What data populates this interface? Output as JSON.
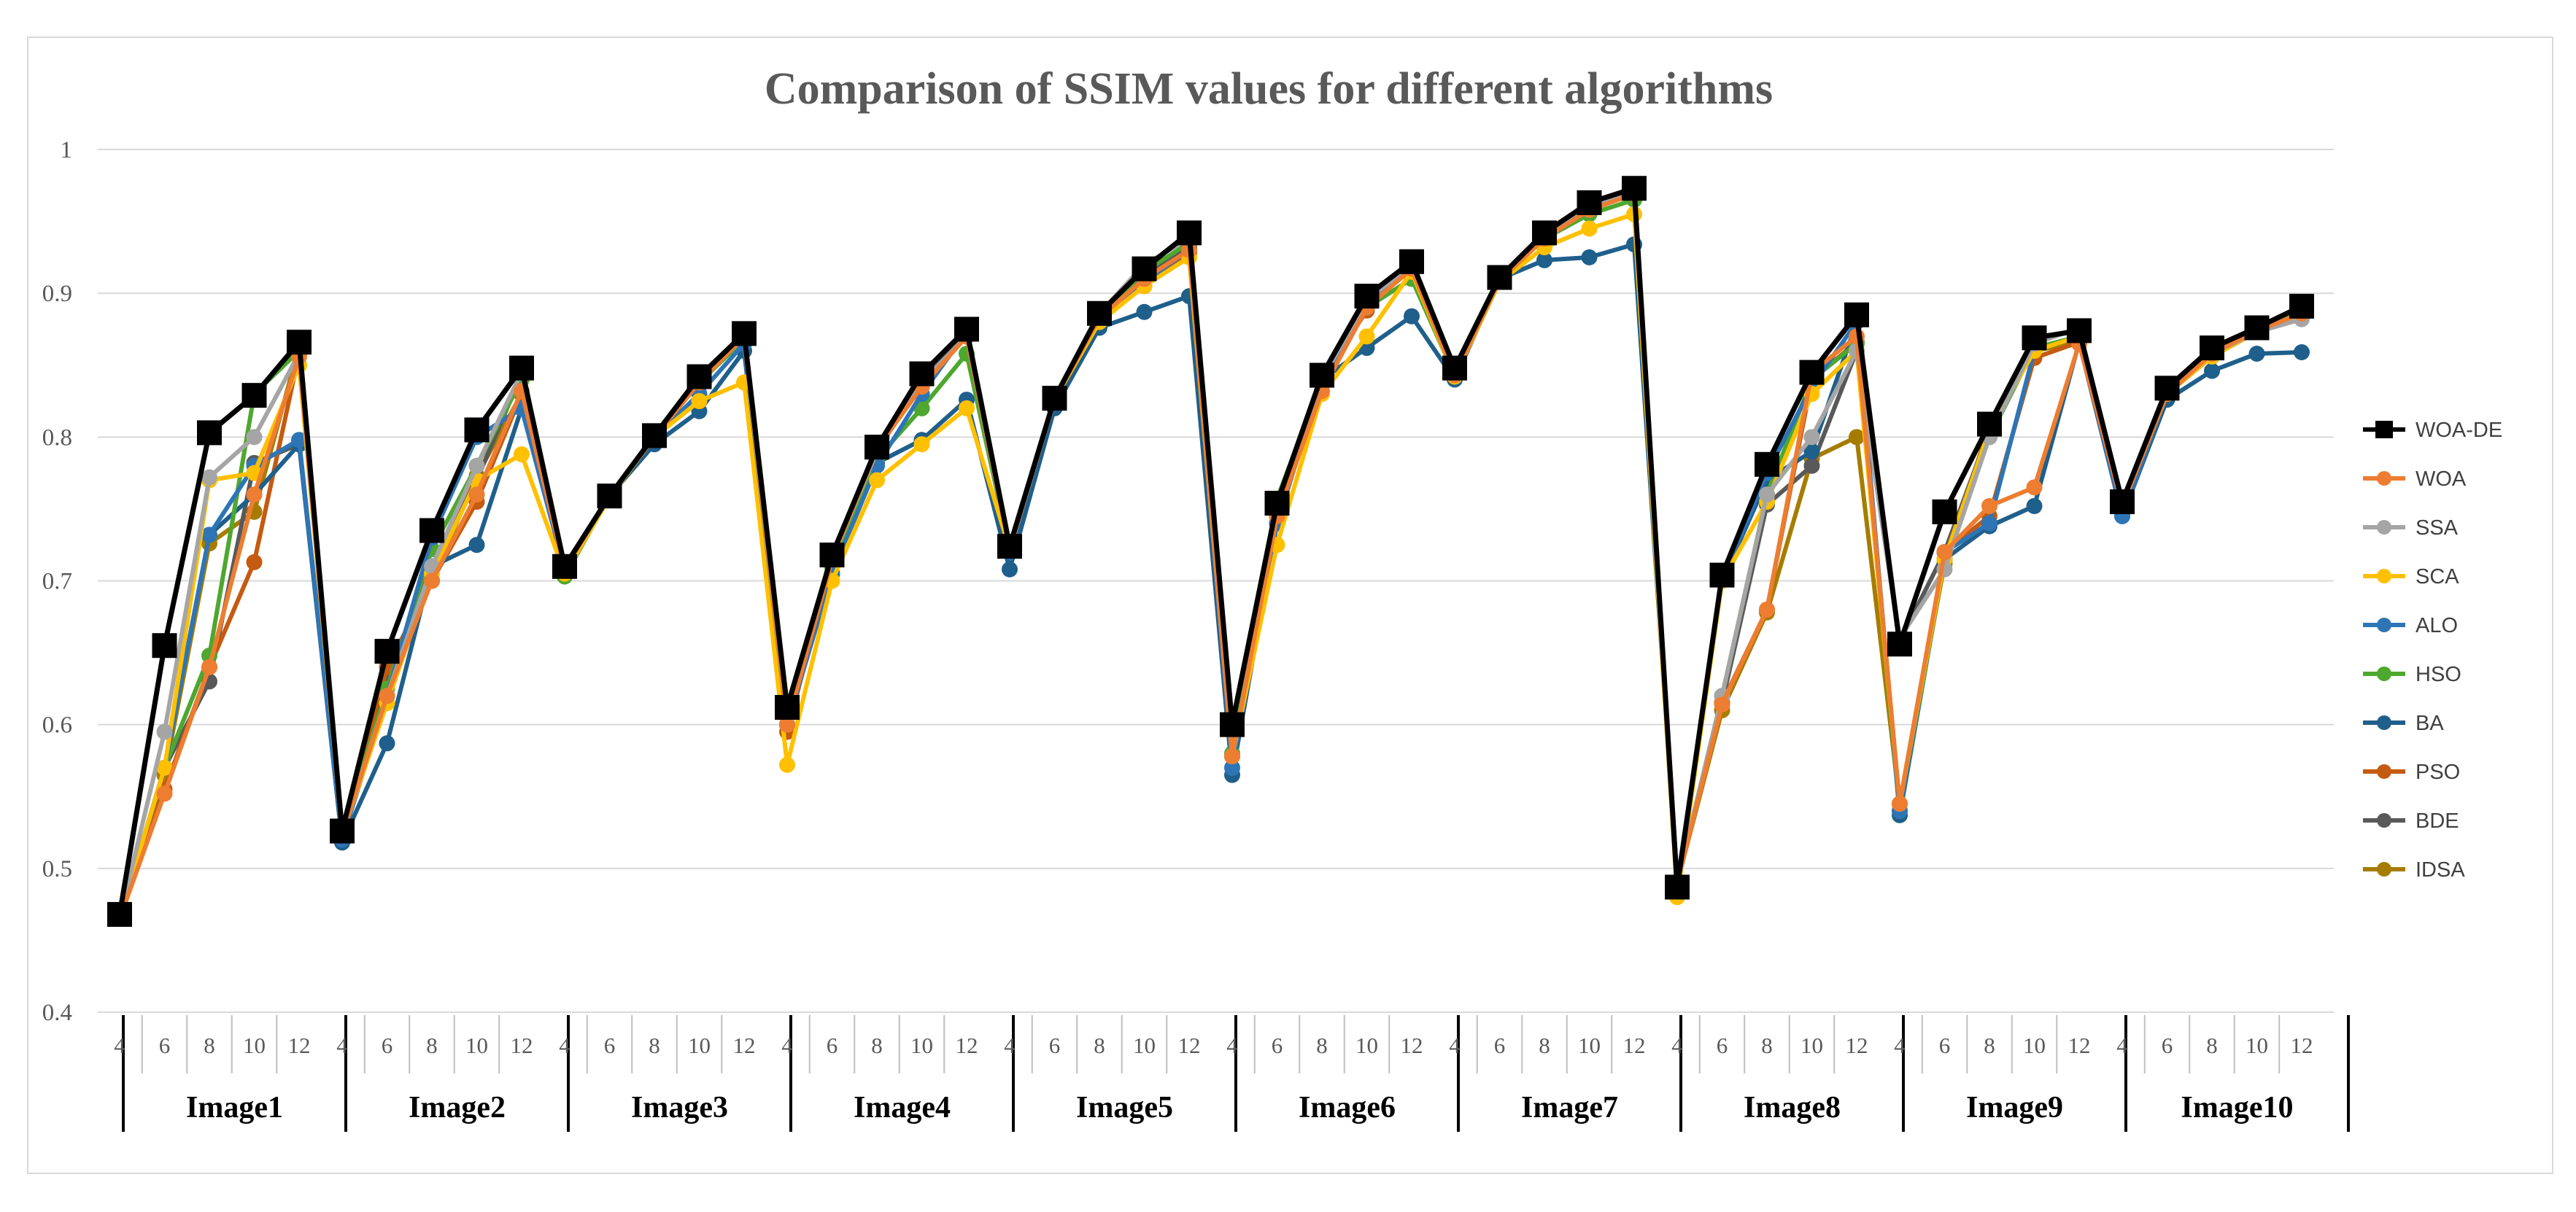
{
  "chart_data": {
    "type": "line",
    "title": "Comparison of SSIM values for different algorithms",
    "xlabel": "",
    "ylabel": "",
    "ylim": [
      0.4,
      1
    ],
    "yticks": [
      "0.4",
      "0.5",
      "0.6",
      "0.7",
      "0.8",
      "0.9",
      "1"
    ],
    "groups": [
      "Image1",
      "Image2",
      "Image3",
      "Image4",
      "Image5",
      "Image6",
      "Image7",
      "Image8",
      "Image9",
      "Image10"
    ],
    "sub_categories": [
      "4",
      "6",
      "8",
      "10",
      "12"
    ],
    "legend_position": "right",
    "grid": "horizontal",
    "series": [
      {
        "name": "WOA-DE",
        "color": "#000000",
        "marker": "square",
        "values": [
          0.468,
          0.655,
          0.803,
          0.829,
          0.866,
          0.526,
          0.651,
          0.735,
          0.805,
          0.848,
          0.71,
          0.759,
          0.801,
          0.842,
          0.872,
          0.612,
          0.718,
          0.793,
          0.844,
          0.875,
          0.724,
          0.827,
          0.886,
          0.917,
          0.942,
          0.6,
          0.754,
          0.843,
          0.898,
          0.922,
          0.848,
          0.911,
          0.942,
          0.963,
          0.973,
          0.487,
          0.704,
          0.781,
          0.845,
          0.885,
          0.656,
          0.748,
          0.809,
          0.869,
          0.874,
          0.755,
          0.834,
          0.862,
          0.876,
          0.891
        ]
      },
      {
        "name": "WOA",
        "color": "#ed7d31",
        "marker": "circle",
        "values": [
          0.465,
          0.552,
          0.64,
          0.76,
          0.856,
          0.524,
          0.62,
          0.7,
          0.76,
          0.832,
          0.708,
          0.759,
          0.8,
          0.838,
          0.87,
          0.6,
          0.715,
          0.792,
          0.835,
          0.87,
          0.722,
          0.826,
          0.883,
          0.91,
          0.93,
          0.578,
          0.745,
          0.832,
          0.89,
          0.917,
          0.843,
          0.909,
          0.938,
          0.958,
          0.969,
          0.49,
          0.614,
          0.68,
          0.845,
          0.87,
          0.545,
          0.72,
          0.752,
          0.765,
          0.865,
          0.752,
          0.83,
          0.858,
          0.874,
          0.886
        ]
      },
      {
        "name": "SSA",
        "color": "#a5a5a5",
        "marker": "circle",
        "values": [
          0.465,
          0.595,
          0.772,
          0.8,
          0.858,
          0.524,
          0.62,
          0.71,
          0.78,
          0.845,
          0.708,
          0.759,
          0.8,
          0.84,
          0.869,
          0.6,
          0.715,
          0.79,
          0.838,
          0.87,
          0.722,
          0.826,
          0.886,
          0.92,
          0.938,
          0.578,
          0.748,
          0.84,
          0.895,
          0.92,
          0.843,
          0.91,
          0.94,
          0.96,
          0.97,
          0.49,
          0.62,
          0.76,
          0.8,
          0.86,
          0.66,
          0.708,
          0.8,
          0.865,
          0.876,
          0.752,
          0.832,
          0.858,
          0.873,
          0.882
        ]
      },
      {
        "name": "SCA",
        "color": "#ffc000",
        "marker": "circle",
        "values": [
          0.465,
          0.57,
          0.77,
          0.775,
          0.85,
          0.524,
          0.615,
          0.705,
          0.77,
          0.788,
          0.705,
          0.758,
          0.8,
          0.825,
          0.838,
          0.572,
          0.7,
          0.77,
          0.795,
          0.82,
          0.722,
          0.826,
          0.88,
          0.905,
          0.925,
          0.578,
          0.725,
          0.83,
          0.87,
          0.915,
          0.842,
          0.908,
          0.932,
          0.945,
          0.955,
          0.48,
          0.7,
          0.755,
          0.83,
          0.86,
          0.545,
          0.715,
          0.805,
          0.86,
          0.87,
          0.752,
          0.83,
          0.856,
          0.873,
          0.884
        ]
      },
      {
        "name": "ALO",
        "color": "#2e75b6",
        "marker": "circle",
        "values": [
          0.465,
          0.57,
          0.732,
          0.78,
          0.798,
          0.52,
          0.62,
          0.73,
          0.8,
          0.82,
          0.708,
          0.759,
          0.8,
          0.83,
          0.865,
          0.6,
          0.705,
          0.78,
          0.83,
          0.873,
          0.72,
          0.826,
          0.882,
          0.908,
          0.93,
          0.57,
          0.74,
          0.84,
          0.89,
          0.918,
          0.843,
          0.91,
          0.938,
          0.958,
          0.97,
          0.49,
          0.7,
          0.775,
          0.835,
          0.88,
          0.54,
          0.72,
          0.74,
          0.86,
          0.87,
          0.745,
          0.83,
          0.856,
          0.874,
          0.886
        ]
      },
      {
        "name": "HSO",
        "color": "#4ea72e",
        "marker": "circle",
        "values": [
          0.465,
          0.57,
          0.648,
          0.83,
          0.86,
          0.524,
          0.625,
          0.722,
          0.78,
          0.84,
          0.703,
          0.759,
          0.8,
          0.838,
          0.868,
          0.6,
          0.71,
          0.785,
          0.82,
          0.858,
          0.722,
          0.826,
          0.885,
          0.915,
          0.935,
          0.58,
          0.757,
          0.84,
          0.89,
          0.91,
          0.843,
          0.91,
          0.938,
          0.955,
          0.965,
          0.49,
          0.62,
          0.76,
          0.84,
          0.865,
          0.54,
          0.715,
          0.8,
          0.862,
          0.87,
          0.752,
          0.83,
          0.858,
          0.876,
          0.887
        ]
      },
      {
        "name": "BA",
        "color": "#1f5f8b",
        "marker": "circle",
        "values": [
          0.465,
          0.57,
          0.732,
          0.76,
          0.795,
          0.518,
          0.587,
          0.71,
          0.725,
          0.82,
          0.708,
          0.759,
          0.795,
          0.818,
          0.86,
          0.6,
          0.705,
          0.782,
          0.798,
          0.826,
          0.708,
          0.82,
          0.876,
          0.887,
          0.898,
          0.565,
          0.74,
          0.84,
          0.862,
          0.884,
          0.84,
          0.91,
          0.923,
          0.925,
          0.934,
          0.49,
          0.7,
          0.77,
          0.79,
          0.88,
          0.537,
          0.715,
          0.738,
          0.752,
          0.866,
          0.745,
          0.826,
          0.846,
          0.858,
          0.859
        ]
      },
      {
        "name": "PSO",
        "color": "#c55a11",
        "marker": "circle",
        "values": [
          0.465,
          0.555,
          0.64,
          0.713,
          0.858,
          0.524,
          0.64,
          0.7,
          0.755,
          0.83,
          0.708,
          0.759,
          0.8,
          0.838,
          0.868,
          0.595,
          0.715,
          0.792,
          0.838,
          0.87,
          0.722,
          0.826,
          0.883,
          0.905,
          0.928,
          0.578,
          0.745,
          0.84,
          0.888,
          0.92,
          0.843,
          0.91,
          0.938,
          0.96,
          0.97,
          0.49,
          0.615,
          0.68,
          0.84,
          0.866,
          0.545,
          0.72,
          0.745,
          0.855,
          0.866,
          0.752,
          0.83,
          0.858,
          0.876,
          0.887
        ]
      },
      {
        "name": "BDE",
        "color": "#595959",
        "marker": "circle",
        "values": [
          0.465,
          0.57,
          0.63,
          0.782,
          0.795,
          0.524,
          0.63,
          0.71,
          0.77,
          0.844,
          0.708,
          0.759,
          0.8,
          0.84,
          0.87,
          0.6,
          0.715,
          0.79,
          0.84,
          0.87,
          0.722,
          0.826,
          0.883,
          0.912,
          0.932,
          0.578,
          0.745,
          0.84,
          0.892,
          0.92,
          0.843,
          0.91,
          0.938,
          0.96,
          0.97,
          0.49,
          0.615,
          0.753,
          0.78,
          0.86,
          0.658,
          0.72,
          0.805,
          0.865,
          0.876,
          0.752,
          0.83,
          0.858,
          0.876,
          0.887
        ]
      },
      {
        "name": "IDSA",
        "color": "#a67c00",
        "marker": "circle",
        "values": [
          0.465,
          0.565,
          0.726,
          0.748,
          0.863,
          0.524,
          0.63,
          0.7,
          0.773,
          0.83,
          0.708,
          0.759,
          0.8,
          0.838,
          0.868,
          0.6,
          0.715,
          0.792,
          0.835,
          0.87,
          0.722,
          0.826,
          0.882,
          0.91,
          0.928,
          0.578,
          0.745,
          0.84,
          0.895,
          0.92,
          0.843,
          0.91,
          0.938,
          0.96,
          0.968,
          0.49,
          0.61,
          0.678,
          0.785,
          0.8,
          0.545,
          0.712,
          0.808,
          0.86,
          0.866,
          0.752,
          0.83,
          0.856,
          0.874,
          0.887
        ]
      }
    ]
  }
}
